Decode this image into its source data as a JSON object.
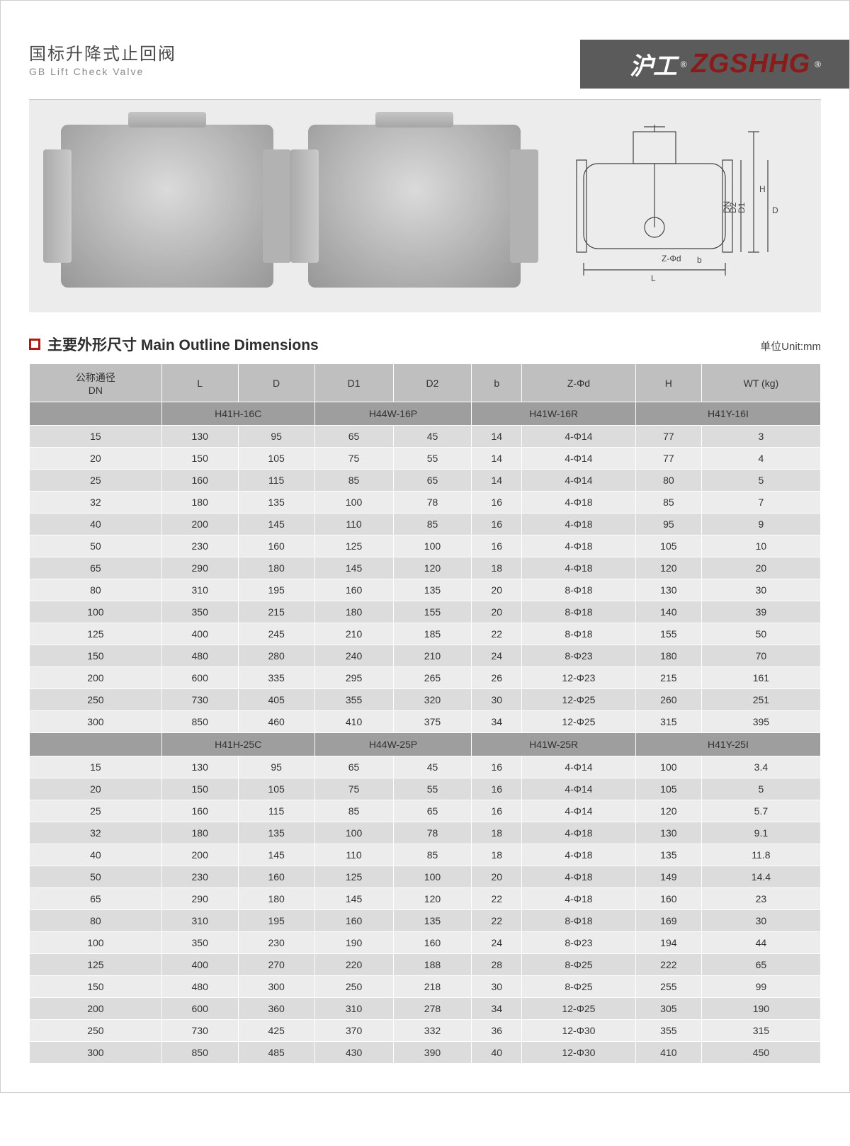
{
  "header": {
    "title_cn": "国标升降式止回阀",
    "title_en": "GB Lift  Check Valve",
    "brand_cn": "沪工",
    "brand_en": "ZGSHHG",
    "reg_mark": "®"
  },
  "diagram_labels": {
    "L": "L",
    "H": "H",
    "D": "D",
    "D1": "D1",
    "D2": "D2",
    "DN": "DN",
    "b": "b",
    "Zphi": "Z-Φd"
  },
  "section": {
    "title": "主要外形尺寸 Main Outline  Dimensions",
    "unit": "单位Unit:mm"
  },
  "table": {
    "columns": [
      "公称通径\nDN",
      "L",
      "D",
      "D1",
      "D2",
      "b",
      "Z-Φd",
      "H",
      "WT (kg)"
    ],
    "groups": [
      {
        "models": [
          "H41H-16C",
          "H44W-16P",
          "H41W-16R",
          "H41Y-16I"
        ],
        "rows": [
          [
            "15",
            "130",
            "95",
            "65",
            "45",
            "14",
            "4-Φ14",
            "77",
            "3"
          ],
          [
            "20",
            "150",
            "105",
            "75",
            "55",
            "14",
            "4-Φ14",
            "77",
            "4"
          ],
          [
            "25",
            "160",
            "115",
            "85",
            "65",
            "14",
            "4-Φ14",
            "80",
            "5"
          ],
          [
            "32",
            "180",
            "135",
            "100",
            "78",
            "16",
            "4-Φ18",
            "85",
            "7"
          ],
          [
            "40",
            "200",
            "145",
            "110",
            "85",
            "16",
            "4-Φ18",
            "95",
            "9"
          ],
          [
            "50",
            "230",
            "160",
            "125",
            "100",
            "16",
            "4-Φ18",
            "105",
            "10"
          ],
          [
            "65",
            "290",
            "180",
            "145",
            "120",
            "18",
            "4-Φ18",
            "120",
            "20"
          ],
          [
            "80",
            "310",
            "195",
            "160",
            "135",
            "20",
            "8-Φ18",
            "130",
            "30"
          ],
          [
            "100",
            "350",
            "215",
            "180",
            "155",
            "20",
            "8-Φ18",
            "140",
            "39"
          ],
          [
            "125",
            "400",
            "245",
            "210",
            "185",
            "22",
            "8-Φ18",
            "155",
            "50"
          ],
          [
            "150",
            "480",
            "280",
            "240",
            "210",
            "24",
            "8-Φ23",
            "180",
            "70"
          ],
          [
            "200",
            "600",
            "335",
            "295",
            "265",
            "26",
            "12-Φ23",
            "215",
            "161"
          ],
          [
            "250",
            "730",
            "405",
            "355",
            "320",
            "30",
            "12-Φ25",
            "260",
            "251"
          ],
          [
            "300",
            "850",
            "460",
            "410",
            "375",
            "34",
            "12-Φ25",
            "315",
            "395"
          ]
        ]
      },
      {
        "models": [
          "H41H-25C",
          "H44W-25P",
          "H41W-25R",
          "H41Y-25I"
        ],
        "rows": [
          [
            "15",
            "130",
            "95",
            "65",
            "45",
            "16",
            "4-Φ14",
            "100",
            "3.4"
          ],
          [
            "20",
            "150",
            "105",
            "75",
            "55",
            "16",
            "4-Φ14",
            "105",
            "5"
          ],
          [
            "25",
            "160",
            "115",
            "85",
            "65",
            "16",
            "4-Φ14",
            "120",
            "5.7"
          ],
          [
            "32",
            "180",
            "135",
            "100",
            "78",
            "18",
            "4-Φ18",
            "130",
            "9.1"
          ],
          [
            "40",
            "200",
            "145",
            "110",
            "85",
            "18",
            "4-Φ18",
            "135",
            "11.8"
          ],
          [
            "50",
            "230",
            "160",
            "125",
            "100",
            "20",
            "4-Φ18",
            "149",
            "14.4"
          ],
          [
            "65",
            "290",
            "180",
            "145",
            "120",
            "22",
            "4-Φ18",
            "160",
            "23"
          ],
          [
            "80",
            "310",
            "195",
            "160",
            "135",
            "22",
            "8-Φ18",
            "169",
            "30"
          ],
          [
            "100",
            "350",
            "230",
            "190",
            "160",
            "24",
            "8-Φ23",
            "194",
            "44"
          ],
          [
            "125",
            "400",
            "270",
            "220",
            "188",
            "28",
            "8-Φ25",
            "222",
            "65"
          ],
          [
            "150",
            "480",
            "300",
            "250",
            "218",
            "30",
            "8-Φ25",
            "255",
            "99"
          ],
          [
            "200",
            "600",
            "360",
            "310",
            "278",
            "34",
            "12-Φ25",
            "305",
            "190"
          ],
          [
            "250",
            "730",
            "425",
            "370",
            "332",
            "36",
            "12-Φ30",
            "355",
            "315"
          ],
          [
            "300",
            "850",
            "485",
            "430",
            "390",
            "40",
            "12-Φ30",
            "410",
            "450"
          ]
        ]
      }
    ]
  },
  "colors": {
    "brand_bg": "#5b5b5b",
    "brand_red": "#8b1a1a",
    "accent_red": "#b01818",
    "thead_bg": "#bfbfbf",
    "model_row_bg": "#9e9e9e",
    "row_odd": "#ececec",
    "row_even": "#dcdcdc",
    "hero_bg": "#ececec"
  }
}
